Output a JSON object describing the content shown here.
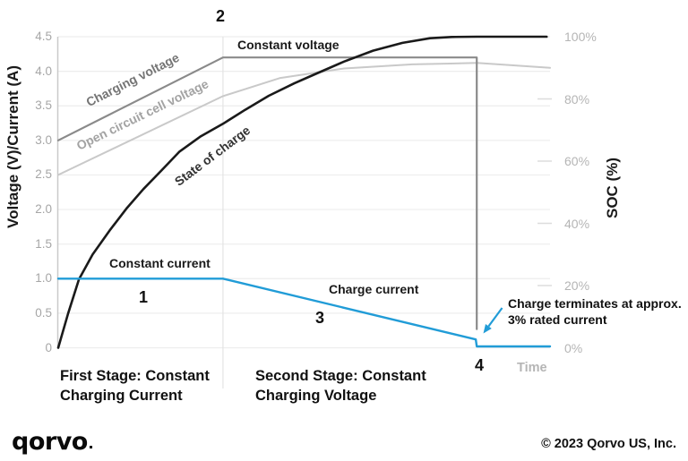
{
  "chart_data": {
    "type": "line",
    "title": "",
    "xlabel": "Time",
    "x_axis": {
      "label": "Time",
      "range": [
        0,
        10
      ],
      "stage_boundary_t": 3.35,
      "termination_t": 8.51,
      "grid": "stage-boundary-only"
    },
    "y_axis_left": {
      "label": "Voltage (V)/Current (A)",
      "range": [
        0,
        4.5
      ],
      "ticks": [
        "4.5",
        "4.0",
        "3.5",
        "3.0",
        "2.5",
        "2.0",
        "1.5",
        "1.0",
        "0.5",
        "0"
      ],
      "tick_values": [
        4.5,
        4.0,
        3.5,
        3.0,
        2.5,
        2.0,
        1.5,
        1.0,
        0.5,
        0
      ],
      "grid": true
    },
    "y_axis_right": {
      "label": "SOC (%)",
      "range": [
        0,
        100
      ],
      "ticks": [
        "100%",
        "80%",
        "60%",
        "40%",
        "20%",
        "0%"
      ],
      "tick_values": [
        100,
        80,
        60,
        40,
        20,
        0
      ],
      "dash_values": [
        80,
        60,
        40,
        20
      ]
    },
    "series": [
      {
        "name": "Open circuit cell voltage",
        "axis": "left",
        "color": "#c9c9c9",
        "width": 2,
        "points": [
          [
            0,
            2.5
          ],
          [
            3.35,
            3.64
          ],
          [
            4.5,
            3.9
          ],
          [
            5.81,
            4.04
          ],
          [
            7.2,
            4.1
          ],
          [
            8.51,
            4.12
          ],
          [
            10,
            4.05
          ]
        ]
      },
      {
        "name": "Charging voltage",
        "axis": "left",
        "color": "#8a8a8a",
        "width": 2.2,
        "points": [
          [
            0,
            3.0
          ],
          [
            3.35,
            4.2
          ],
          [
            8.51,
            4.2
          ],
          [
            8.51,
            0.27
          ]
        ]
      },
      {
        "name": "State of charge",
        "axis": "right",
        "color": "#1a1a1a",
        "width": 2.6,
        "points": [
          [
            0,
            0
          ],
          [
            0.2,
            11
          ],
          [
            0.42,
            22
          ],
          [
            0.7,
            30
          ],
          [
            1.06,
            38
          ],
          [
            1.4,
            45
          ],
          [
            1.73,
            51
          ],
          [
            2.1,
            57
          ],
          [
            2.46,
            63
          ],
          [
            2.9,
            68
          ],
          [
            3.35,
            72
          ],
          [
            3.8,
            76.5
          ],
          [
            4.28,
            81
          ],
          [
            4.8,
            85
          ],
          [
            5.3,
            88.5
          ],
          [
            5.81,
            92
          ],
          [
            6.4,
            95.5
          ],
          [
            7.0,
            98
          ],
          [
            7.56,
            99.5
          ],
          [
            8.0,
            99.9
          ],
          [
            8.51,
            100
          ],
          [
            9.93,
            100
          ]
        ]
      },
      {
        "name": "Charge current",
        "axis": "left",
        "color": "#219cd7",
        "width": 2.4,
        "points": [
          [
            0,
            1.0
          ],
          [
            3.35,
            1.0
          ],
          [
            8.49,
            0.12
          ],
          [
            8.51,
            0.02
          ],
          [
            10,
            0.02
          ]
        ]
      }
    ],
    "annotations": {
      "num_1": "1",
      "num_2": "2",
      "num_3": "3",
      "num_4": "4",
      "constant_voltage": "Constant voltage",
      "constant_current": "Constant current",
      "charge_current_label": "Charge current",
      "charging_voltage_label": "Charging voltage",
      "open_circuit_label": "Open circuit cell voltage",
      "state_of_charge_label": "State of charge",
      "terminate_note": "Charge terminates at approx. 3% rated current",
      "time_label": "Time",
      "arrow_color": "#219cd7"
    },
    "legend": "labels-along-lines"
  },
  "stages": {
    "first": "First Stage: Constant\nCharging Current",
    "second": "Second Stage: Constant\nCharging Voltage"
  },
  "colors": {
    "grid": "#ededed",
    "axis_line": "#c9c9c9",
    "stage_line": "#e3e3e3",
    "right_dash": "#dcdcdc"
  },
  "footer": {
    "logo_text": "qorvo",
    "copyright": "© 2023 Qorvo US, Inc."
  }
}
